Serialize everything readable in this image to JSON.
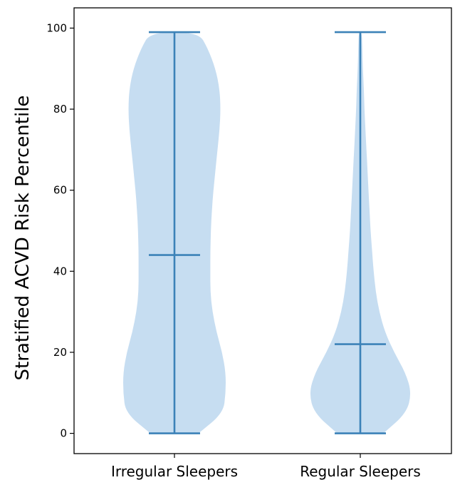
{
  "chart_data": {
    "type": "violin",
    "ylabel": "Stratified ACVD Risk Percentile",
    "xlabel": "",
    "ylim": [
      -5,
      105
    ],
    "yticks": [
      "0",
      "20",
      "40",
      "60",
      "80",
      "100"
    ],
    "categories": [
      "Irregular Sleepers",
      "Regular Sleepers"
    ],
    "series": [
      {
        "min": 0,
        "max": 99,
        "median": 44,
        "density": [
          [
            0,
            0.47
          ],
          [
            5,
            0.95
          ],
          [
            10,
            1.0
          ],
          [
            15,
            1.0
          ],
          [
            20,
            0.93
          ],
          [
            25,
            0.82
          ],
          [
            30,
            0.74
          ],
          [
            35,
            0.7
          ],
          [
            40,
            0.7
          ],
          [
            45,
            0.7
          ],
          [
            50,
            0.71
          ],
          [
            55,
            0.73
          ],
          [
            60,
            0.76
          ],
          [
            65,
            0.8
          ],
          [
            70,
            0.84
          ],
          [
            75,
            0.88
          ],
          [
            80,
            0.9
          ],
          [
            85,
            0.88
          ],
          [
            90,
            0.8
          ],
          [
            95,
            0.65
          ],
          [
            99,
            0.47
          ]
        ]
      },
      {
        "min": 0,
        "max": 99,
        "median": 22,
        "density": [
          [
            0,
            0.45
          ],
          [
            5,
            0.9
          ],
          [
            10,
            1.0
          ],
          [
            15,
            0.88
          ],
          [
            20,
            0.66
          ],
          [
            25,
            0.48
          ],
          [
            30,
            0.37
          ],
          [
            35,
            0.3
          ],
          [
            40,
            0.26
          ],
          [
            45,
            0.23
          ],
          [
            50,
            0.2
          ],
          [
            55,
            0.18
          ],
          [
            60,
            0.16
          ],
          [
            65,
            0.14
          ],
          [
            70,
            0.12
          ],
          [
            75,
            0.1
          ],
          [
            80,
            0.08
          ],
          [
            85,
            0.07
          ],
          [
            90,
            0.05
          ],
          [
            95,
            0.04
          ],
          [
            99,
            0.03
          ]
        ]
      }
    ],
    "colors": {
      "body": "#c6ddf1",
      "lines": "#3c82b8"
    },
    "grid": false
  }
}
